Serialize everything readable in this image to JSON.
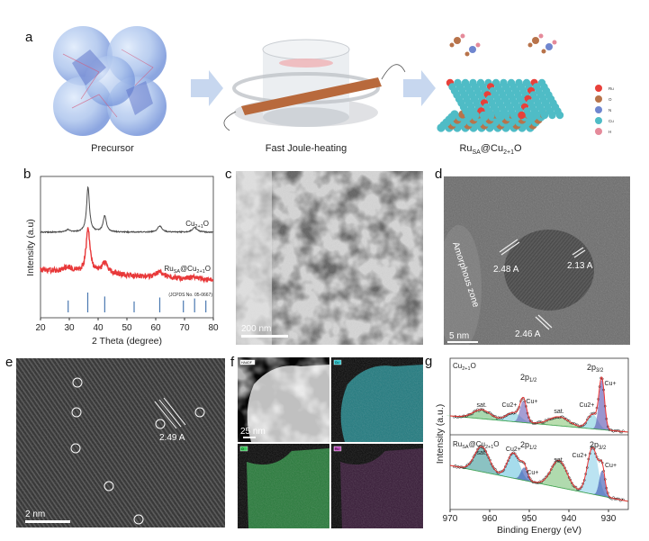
{
  "panels": {
    "a": "a",
    "b": "b",
    "c": "c",
    "d": "d",
    "e": "e",
    "f": "f",
    "g": "g"
  },
  "panel_a": {
    "step1": "Precursor",
    "step2": "Fast Joule-heating",
    "product": {
      "p1": "Ru",
      "p2": "SA",
      "p3": "@Cu",
      "p4": "2+1",
      "p5": "O"
    },
    "legend": [
      {
        "label": "Ru",
        "color": "#e8403a"
      },
      {
        "label": "O",
        "color": "#b8734a"
      },
      {
        "label": "N",
        "color": "#6f86cf"
      },
      {
        "label": "Cu",
        "color": "#4fbcc6"
      },
      {
        "label": "H",
        "color": "#e58a9a"
      }
    ]
  },
  "panel_c": {
    "scale": "200 nm"
  },
  "panel_d": {
    "scale": "5 nm",
    "zone": "Amorphous zone",
    "d1": "2.48 A",
    "d2": "2.13 A",
    "d3": "2.46 A"
  },
  "panel_e": {
    "scale": "2 nm",
    "d": "2.49 A"
  },
  "panel_f": {
    "scale": "25 nm",
    "tags": [
      "HAADF",
      "Cu",
      "O",
      "Ru"
    ],
    "colors": [
      "#ffffff",
      "#2ec7cf",
      "#3ac75a",
      "#c04cc0"
    ]
  },
  "chart_data": [
    {
      "panel": "b",
      "type": "line",
      "xlabel": "2 Theta (degree)",
      "ylabel": "Intensity (a.u)",
      "xlim": [
        20,
        80
      ],
      "xticks": [
        20,
        30,
        40,
        50,
        60,
        70,
        80
      ],
      "grid": false,
      "series": [
        {
          "name": {
            "a": "Cu",
            "b": "2+1",
            "c": "O"
          },
          "color": "#4a4a4a",
          "peaks": [
            [
              29.6,
              0.06,
              0.7
            ],
            [
              36.5,
              1.0,
              0.6
            ],
            [
              42.3,
              0.36,
              0.7
            ],
            [
              61.4,
              0.14,
              0.9
            ],
            [
              73.5,
              0.1,
              1.0
            ]
          ]
        },
        {
          "name": {
            "a": "Ru",
            "b": "SA",
            "c": "@Cu",
            "d": "2+1",
            "e": "O"
          },
          "color": "#e8393a",
          "peaks": [
            [
              29.6,
              0.1,
              2.0
            ],
            [
              36.5,
              1.0,
              0.8
            ],
            [
              42.3,
              0.25,
              1.2
            ],
            [
              61.5,
              0.12,
              1.6
            ],
            [
              73.5,
              0.06,
              2.0
            ]
          ]
        }
      ],
      "reference": {
        "label": "(JCPDS No. 05-0667)",
        "color": "#4a78b0",
        "positions": [
          [
            29.6,
            0.6
          ],
          [
            36.4,
            1.0
          ],
          [
            42.3,
            0.8
          ],
          [
            52.5,
            0.55
          ],
          [
            61.4,
            0.75
          ],
          [
            69.6,
            0.6
          ],
          [
            73.5,
            0.7
          ],
          [
            77.4,
            0.6
          ]
        ]
      }
    },
    {
      "panel": "g",
      "type": "line",
      "xlabel": "Binding Energy (eV)",
      "ylabel": "Intensity (a.u.)",
      "xlim": [
        970,
        925
      ],
      "xticks": [
        970,
        960,
        950,
        940,
        930
      ],
      "subplots": [
        {
          "title": {
            "a": "Cu",
            "b": "2+1",
            "c": "O"
          },
          "components": [
            {
              "label": "sat.",
              "center": 962,
              "intensity": 10,
              "width": 2.2,
              "color": "#6fbf7a"
            },
            {
              "label": "Cu2+",
              "center": 954,
              "intensity": 10,
              "width": 1.8,
              "color": "#7fd0e0"
            },
            {
              "label": "Cu+",
              "center": 951.5,
              "intensity": 24,
              "width": 0.8,
              "color": "#6a5fb8"
            },
            {
              "label": "sat.",
              "center": 942.5,
              "intensity": 10,
              "width": 2.5,
              "color": "#8cc77a"
            },
            {
              "label": "Cu2+",
              "center": 934,
              "intensity": 16,
              "width": 1.3,
              "color": "#7fd0e0"
            },
            {
              "label": "Cu+",
              "center": 931.7,
              "intensity": 55,
              "width": 0.7,
              "color": "#5a4fb0"
            }
          ],
          "orbital1": {
            "a": "2p",
            "b": "1/2"
          },
          "orbital2": {
            "a": "2p",
            "b": "3/2"
          }
        },
        {
          "title": {
            "a": "Ru",
            "b": "SA",
            "c": "@Cu",
            "d": "2+1",
            "e": "O"
          },
          "components": [
            {
              "label": "sat.",
              "center": 962,
              "intensity": 28,
              "width": 1.8,
              "color": "#3f9a9a"
            },
            {
              "label": "Cu2+",
              "center": 954,
              "intensity": 28,
              "width": 1.5,
              "color": "#6cc6e0"
            },
            {
              "label": "Cu+",
              "center": 951.3,
              "intensity": 14,
              "width": 0.8,
              "color": "#3550b0"
            },
            {
              "label": "sat.",
              "center": 942.5,
              "intensity": 30,
              "width": 2.0,
              "color": "#7cc27a"
            },
            {
              "label": "Cu2+",
              "center": 934,
              "intensity": 52,
              "width": 1.3,
              "color": "#8fd2ea"
            },
            {
              "label": "Cu+",
              "center": 931.6,
              "intensity": 28,
              "width": 0.7,
              "color": "#3550b0"
            }
          ],
          "orbital1": {
            "a": "2p",
            "b": "1/2"
          },
          "orbital2": {
            "a": "2p",
            "b": "3/2"
          }
        }
      ],
      "sat_label": "sat.",
      "cu2_label": {
        "a": "Cu",
        "b": "2+"
      },
      "cu1_label": {
        "a": "Cu",
        "b": "+"
      }
    }
  ]
}
